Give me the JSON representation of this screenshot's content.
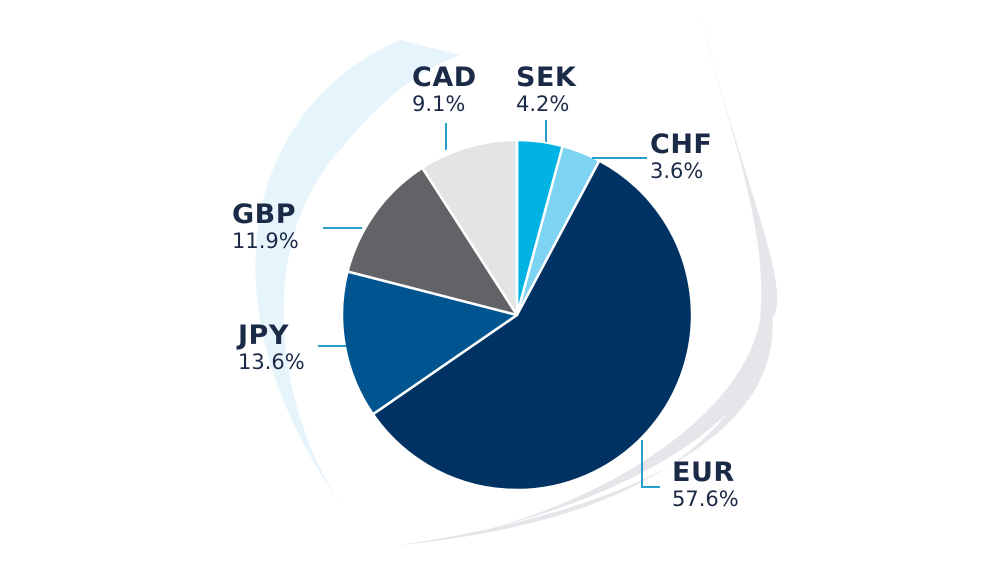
{
  "chart_data": {
    "type": "pie",
    "start_angle_deg": 0,
    "direction": "clockwise",
    "slices": [
      {
        "label": "SEK",
        "value": 4.2,
        "display": "4.2%",
        "color": "#00b3e3"
      },
      {
        "label": "CHF",
        "value": 3.6,
        "display": "3.6%",
        "color": "#7dd3f2"
      },
      {
        "label": "EUR",
        "value": 57.6,
        "display": "57.6%",
        "color": "#003263"
      },
      {
        "label": "JPY",
        "value": 13.6,
        "display": "13.6%",
        "color": "#00548f"
      },
      {
        "label": "GBP",
        "value": 11.9,
        "display": "11.9%",
        "color": "#626366"
      },
      {
        "label": "CAD",
        "value": 9.1,
        "display": "9.1%",
        "color": "#e3e4e6"
      }
    ]
  },
  "colors": {
    "text": "#1b2a47",
    "leader_line": "#2a9fc9",
    "swirl_light": "#e6f4fb",
    "swirl_grey": "#e4e6ea"
  }
}
